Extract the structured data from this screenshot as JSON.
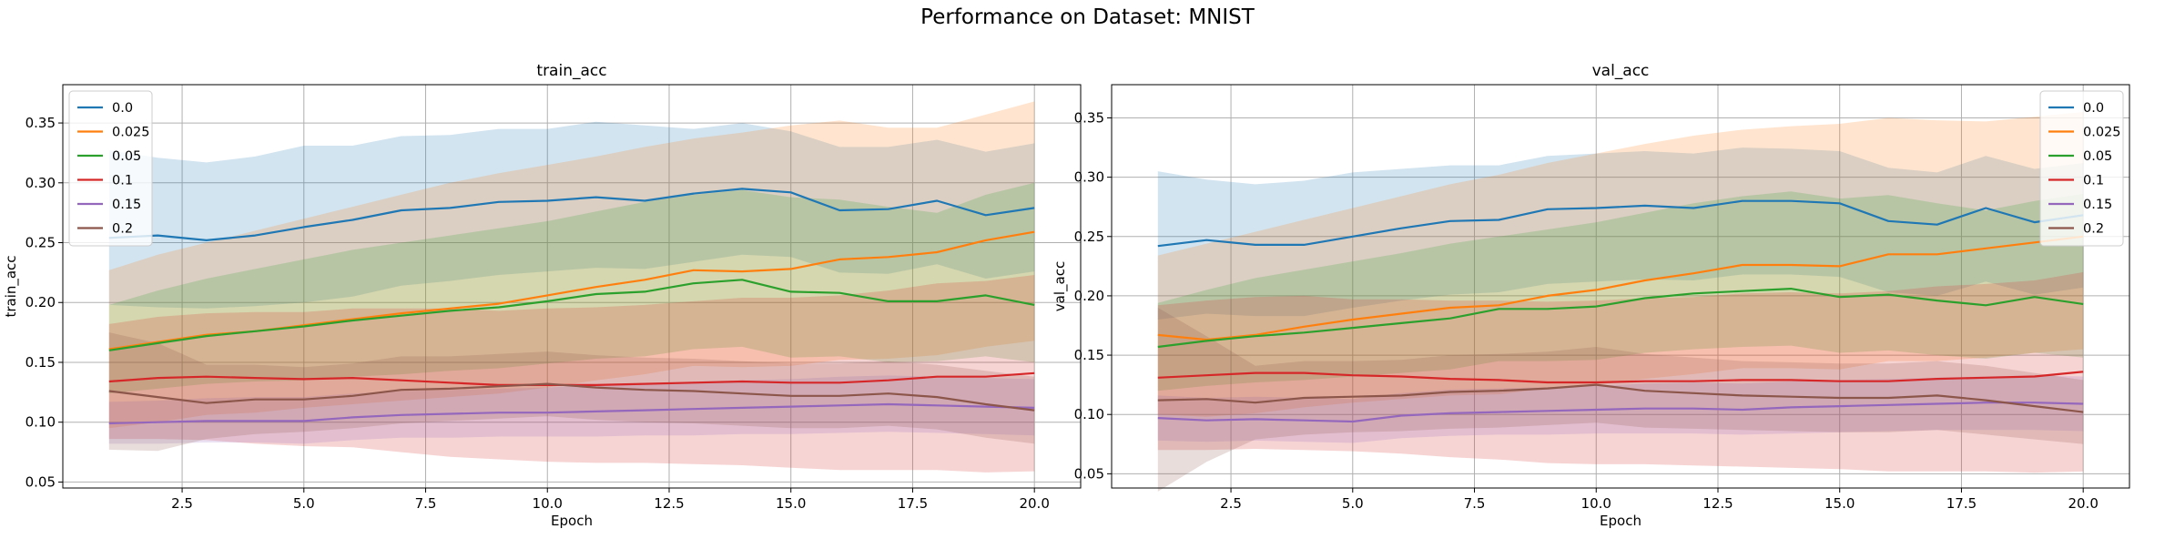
{
  "figure": {
    "title": "Performance on Dataset: MNIST"
  },
  "chart_data": [
    {
      "type": "line",
      "title": "train_acc",
      "xlabel": "Epoch",
      "ylabel": "train_acc",
      "xlim": [
        0.05,
        20.95
      ],
      "ylim": [
        0.045,
        0.382
      ],
      "xticks": [
        "2.5",
        "5.0",
        "7.5",
        "10.0",
        "12.5",
        "15.0",
        "17.5",
        "20.0"
      ],
      "yticks": [
        "0.05",
        "0.10",
        "0.15",
        "0.20",
        "0.25",
        "0.30",
        "0.35"
      ],
      "grid": true,
      "legend_position": "upper-left",
      "x": [
        1,
        2,
        3,
        4,
        5,
        6,
        7,
        8,
        9,
        10,
        11,
        12,
        13,
        14,
        15,
        16,
        17,
        18,
        19,
        20
      ],
      "series": [
        {
          "name": "0.0",
          "color": "#1f77b4",
          "values": [
            0.254,
            0.256,
            0.252,
            0.256,
            0.263,
            0.269,
            0.277,
            0.279,
            0.284,
            0.285,
            0.288,
            0.285,
            0.291,
            0.295,
            0.292,
            0.277,
            0.278,
            0.285,
            0.273,
            0.279
          ],
          "lower": [
            0.198,
            0.196,
            0.195,
            0.197,
            0.2,
            0.205,
            0.214,
            0.218,
            0.223,
            0.226,
            0.229,
            0.228,
            0.234,
            0.24,
            0.238,
            0.225,
            0.224,
            0.232,
            0.22,
            0.226
          ],
          "upper": [
            0.327,
            0.321,
            0.317,
            0.322,
            0.331,
            0.331,
            0.339,
            0.34,
            0.345,
            0.345,
            0.351,
            0.348,
            0.345,
            0.35,
            0.343,
            0.33,
            0.33,
            0.336,
            0.326,
            0.333
          ]
        },
        {
          "name": "0.025",
          "color": "#ff7f0e",
          "values": [
            0.161,
            0.167,
            0.173,
            0.176,
            0.181,
            0.186,
            0.191,
            0.195,
            0.199,
            0.206,
            0.213,
            0.219,
            0.227,
            0.226,
            0.228,
            0.236,
            0.238,
            0.242,
            0.252,
            0.259
          ],
          "lower": [
            0.095,
            0.1,
            0.106,
            0.108,
            0.112,
            0.115,
            0.118,
            0.121,
            0.124,
            0.129,
            0.135,
            0.14,
            0.147,
            0.146,
            0.147,
            0.152,
            0.153,
            0.156,
            0.163,
            0.168
          ],
          "upper": [
            0.227,
            0.24,
            0.25,
            0.26,
            0.27,
            0.28,
            0.29,
            0.3,
            0.308,
            0.315,
            0.322,
            0.33,
            0.337,
            0.342,
            0.348,
            0.352,
            0.346,
            0.346,
            0.357,
            0.368
          ]
        },
        {
          "name": "0.05",
          "color": "#2ca02c",
          "values": [
            0.16,
            0.166,
            0.172,
            0.176,
            0.18,
            0.185,
            0.189,
            0.193,
            0.196,
            0.201,
            0.207,
            0.209,
            0.216,
            0.219,
            0.209,
            0.208,
            0.201,
            0.201,
            0.206,
            0.198
          ],
          "lower": [
            0.124,
            0.128,
            0.132,
            0.134,
            0.135,
            0.138,
            0.14,
            0.143,
            0.145,
            0.149,
            0.153,
            0.155,
            0.161,
            0.163,
            0.154,
            0.155,
            0.15,
            0.151,
            0.155,
            0.15
          ],
          "upper": [
            0.198,
            0.21,
            0.22,
            0.228,
            0.236,
            0.244,
            0.25,
            0.256,
            0.262,
            0.268,
            0.276,
            0.284,
            0.29,
            0.294,
            0.288,
            0.286,
            0.28,
            0.275,
            0.29,
            0.3
          ]
        },
        {
          "name": "0.1",
          "color": "#d62728",
          "values": [
            0.134,
            0.137,
            0.138,
            0.137,
            0.136,
            0.137,
            0.135,
            0.133,
            0.131,
            0.131,
            0.131,
            0.132,
            0.133,
            0.134,
            0.133,
            0.133,
            0.135,
            0.138,
            0.138,
            0.141
          ],
          "lower": [
            0.086,
            0.086,
            0.085,
            0.082,
            0.08,
            0.079,
            0.075,
            0.071,
            0.069,
            0.067,
            0.066,
            0.066,
            0.065,
            0.064,
            0.062,
            0.06,
            0.06,
            0.06,
            0.058,
            0.059
          ],
          "upper": [
            0.182,
            0.188,
            0.191,
            0.192,
            0.192,
            0.195,
            0.195,
            0.195,
            0.193,
            0.195,
            0.196,
            0.198,
            0.201,
            0.204,
            0.204,
            0.206,
            0.21,
            0.216,
            0.218,
            0.223
          ]
        },
        {
          "name": "0.15",
          "color": "#9467bd",
          "values": [
            0.099,
            0.1,
            0.101,
            0.101,
            0.101,
            0.104,
            0.106,
            0.107,
            0.108,
            0.108,
            0.109,
            0.11,
            0.111,
            0.112,
            0.113,
            0.114,
            0.115,
            0.114,
            0.113,
            0.112
          ],
          "lower": [
            0.082,
            0.082,
            0.083,
            0.083,
            0.082,
            0.085,
            0.087,
            0.087,
            0.088,
            0.088,
            0.088,
            0.089,
            0.089,
            0.09,
            0.09,
            0.091,
            0.092,
            0.091,
            0.09,
            0.089
          ],
          "upper": [
            0.117,
            0.118,
            0.12,
            0.121,
            0.121,
            0.124,
            0.126,
            0.127,
            0.128,
            0.129,
            0.131,
            0.132,
            0.134,
            0.135,
            0.136,
            0.138,
            0.139,
            0.138,
            0.137,
            0.136
          ]
        },
        {
          "name": "0.2",
          "color": "#8c564b",
          "values": [
            0.126,
            0.121,
            0.116,
            0.119,
            0.119,
            0.122,
            0.127,
            0.128,
            0.13,
            0.132,
            0.129,
            0.127,
            0.126,
            0.124,
            0.122,
            0.122,
            0.124,
            0.121,
            0.115,
            0.11
          ],
          "lower": [
            0.077,
            0.076,
            0.086,
            0.09,
            0.092,
            0.095,
            0.099,
            0.101,
            0.103,
            0.105,
            0.102,
            0.1,
            0.099,
            0.097,
            0.095,
            0.095,
            0.097,
            0.094,
            0.087,
            0.082
          ],
          "upper": [
            0.175,
            0.166,
            0.148,
            0.148,
            0.146,
            0.149,
            0.155,
            0.155,
            0.157,
            0.159,
            0.156,
            0.154,
            0.153,
            0.151,
            0.149,
            0.149,
            0.151,
            0.148,
            0.143,
            0.138
          ]
        }
      ]
    },
    {
      "type": "line",
      "title": "val_acc",
      "xlabel": "Epoch",
      "ylabel": "val_acc",
      "xlim": [
        0.05,
        20.95
      ],
      "ylim": [
        0.038,
        0.378
      ],
      "xticks": [
        "2.5",
        "5.0",
        "7.5",
        "10.0",
        "12.5",
        "15.0",
        "17.5",
        "20.0"
      ],
      "yticks": [
        "0.05",
        "0.10",
        "0.15",
        "0.20",
        "0.25",
        "0.30",
        "0.35"
      ],
      "grid": true,
      "legend_position": "upper-right",
      "x": [
        1,
        2,
        3,
        4,
        5,
        6,
        7,
        8,
        9,
        10,
        11,
        12,
        13,
        14,
        15,
        16,
        17,
        18,
        19,
        20
      ],
      "series": [
        {
          "name": "0.0",
          "color": "#1f77b4",
          "values": [
            0.242,
            0.247,
            0.243,
            0.243,
            0.25,
            0.257,
            0.263,
            0.264,
            0.273,
            0.274,
            0.276,
            0.274,
            0.28,
            0.28,
            0.278,
            0.263,
            0.26,
            0.274,
            0.262,
            0.268
          ],
          "lower": [
            0.18,
            0.185,
            0.183,
            0.183,
            0.19,
            0.196,
            0.201,
            0.203,
            0.21,
            0.212,
            0.214,
            0.213,
            0.218,
            0.218,
            0.216,
            0.203,
            0.2,
            0.212,
            0.201,
            0.207
          ],
          "upper": [
            0.305,
            0.298,
            0.294,
            0.297,
            0.304,
            0.307,
            0.31,
            0.31,
            0.318,
            0.32,
            0.322,
            0.32,
            0.325,
            0.324,
            0.322,
            0.308,
            0.304,
            0.318,
            0.307,
            0.312
          ]
        },
        {
          "name": "0.025",
          "color": "#ff7f0e",
          "values": [
            0.167,
            0.163,
            0.167,
            0.174,
            0.18,
            0.185,
            0.19,
            0.192,
            0.2,
            0.205,
            0.213,
            0.219,
            0.226,
            0.226,
            0.225,
            0.235,
            0.235,
            0.24,
            0.245,
            0.25
          ],
          "lower": [
            0.1,
            0.098,
            0.101,
            0.106,
            0.11,
            0.113,
            0.116,
            0.117,
            0.122,
            0.125,
            0.13,
            0.134,
            0.139,
            0.139,
            0.138,
            0.145,
            0.145,
            0.148,
            0.152,
            0.155
          ],
          "upper": [
            0.234,
            0.244,
            0.254,
            0.264,
            0.274,
            0.284,
            0.294,
            0.302,
            0.312,
            0.32,
            0.328,
            0.335,
            0.34,
            0.343,
            0.345,
            0.35,
            0.348,
            0.347,
            0.351,
            0.355
          ]
        },
        {
          "name": "0.05",
          "color": "#2ca02c",
          "values": [
            0.157,
            0.162,
            0.166,
            0.169,
            0.173,
            0.177,
            0.181,
            0.189,
            0.189,
            0.191,
            0.198,
            0.202,
            0.204,
            0.206,
            0.199,
            0.201,
            0.196,
            0.192,
            0.199,
            0.193
          ],
          "lower": [
            0.12,
            0.124,
            0.127,
            0.129,
            0.132,
            0.135,
            0.138,
            0.145,
            0.145,
            0.146,
            0.152,
            0.155,
            0.157,
            0.158,
            0.152,
            0.154,
            0.15,
            0.147,
            0.152,
            0.148
          ],
          "upper": [
            0.194,
            0.205,
            0.215,
            0.222,
            0.229,
            0.236,
            0.244,
            0.25,
            0.256,
            0.262,
            0.27,
            0.278,
            0.284,
            0.288,
            0.282,
            0.285,
            0.278,
            0.272,
            0.28,
            0.286
          ]
        },
        {
          "name": "0.1",
          "color": "#d62728",
          "values": [
            0.131,
            0.133,
            0.135,
            0.135,
            0.133,
            0.132,
            0.13,
            0.129,
            0.127,
            0.127,
            0.128,
            0.128,
            0.129,
            0.129,
            0.128,
            0.128,
            0.13,
            0.131,
            0.132,
            0.136
          ],
          "lower": [
            0.07,
            0.07,
            0.071,
            0.07,
            0.069,
            0.067,
            0.064,
            0.062,
            0.059,
            0.058,
            0.058,
            0.057,
            0.056,
            0.055,
            0.054,
            0.052,
            0.052,
            0.052,
            0.051,
            0.052
          ],
          "upper": [
            0.192,
            0.196,
            0.199,
            0.2,
            0.197,
            0.197,
            0.196,
            0.196,
            0.195,
            0.196,
            0.198,
            0.199,
            0.202,
            0.203,
            0.202,
            0.204,
            0.208,
            0.21,
            0.213,
            0.22
          ]
        },
        {
          "name": "0.15",
          "color": "#9467bd",
          "values": [
            0.097,
            0.095,
            0.096,
            0.095,
            0.094,
            0.099,
            0.101,
            0.102,
            0.103,
            0.104,
            0.105,
            0.105,
            0.104,
            0.106,
            0.107,
            0.108,
            0.109,
            0.11,
            0.11,
            0.109
          ],
          "lower": [
            0.078,
            0.077,
            0.078,
            0.077,
            0.076,
            0.08,
            0.082,
            0.083,
            0.083,
            0.084,
            0.084,
            0.084,
            0.083,
            0.084,
            0.085,
            0.086,
            0.087,
            0.087,
            0.087,
            0.086
          ],
          "upper": [
            0.116,
            0.114,
            0.115,
            0.114,
            0.113,
            0.118,
            0.121,
            0.122,
            0.123,
            0.124,
            0.126,
            0.127,
            0.126,
            0.128,
            0.129,
            0.13,
            0.131,
            0.132,
            0.133,
            0.132
          ]
        },
        {
          "name": "0.2",
          "color": "#8c564b",
          "values": [
            0.112,
            0.113,
            0.11,
            0.114,
            0.115,
            0.116,
            0.119,
            0.12,
            0.122,
            0.125,
            0.12,
            0.118,
            0.116,
            0.115,
            0.114,
            0.114,
            0.116,
            0.112,
            0.107,
            0.102
          ],
          "lower": [
            0.035,
            0.06,
            0.079,
            0.083,
            0.085,
            0.086,
            0.088,
            0.089,
            0.091,
            0.093,
            0.089,
            0.088,
            0.087,
            0.086,
            0.085,
            0.085,
            0.087,
            0.083,
            0.079,
            0.075
          ],
          "upper": [
            0.19,
            0.166,
            0.141,
            0.145,
            0.145,
            0.146,
            0.15,
            0.151,
            0.153,
            0.157,
            0.151,
            0.148,
            0.145,
            0.144,
            0.143,
            0.143,
            0.145,
            0.141,
            0.135,
            0.129
          ]
        }
      ]
    }
  ]
}
